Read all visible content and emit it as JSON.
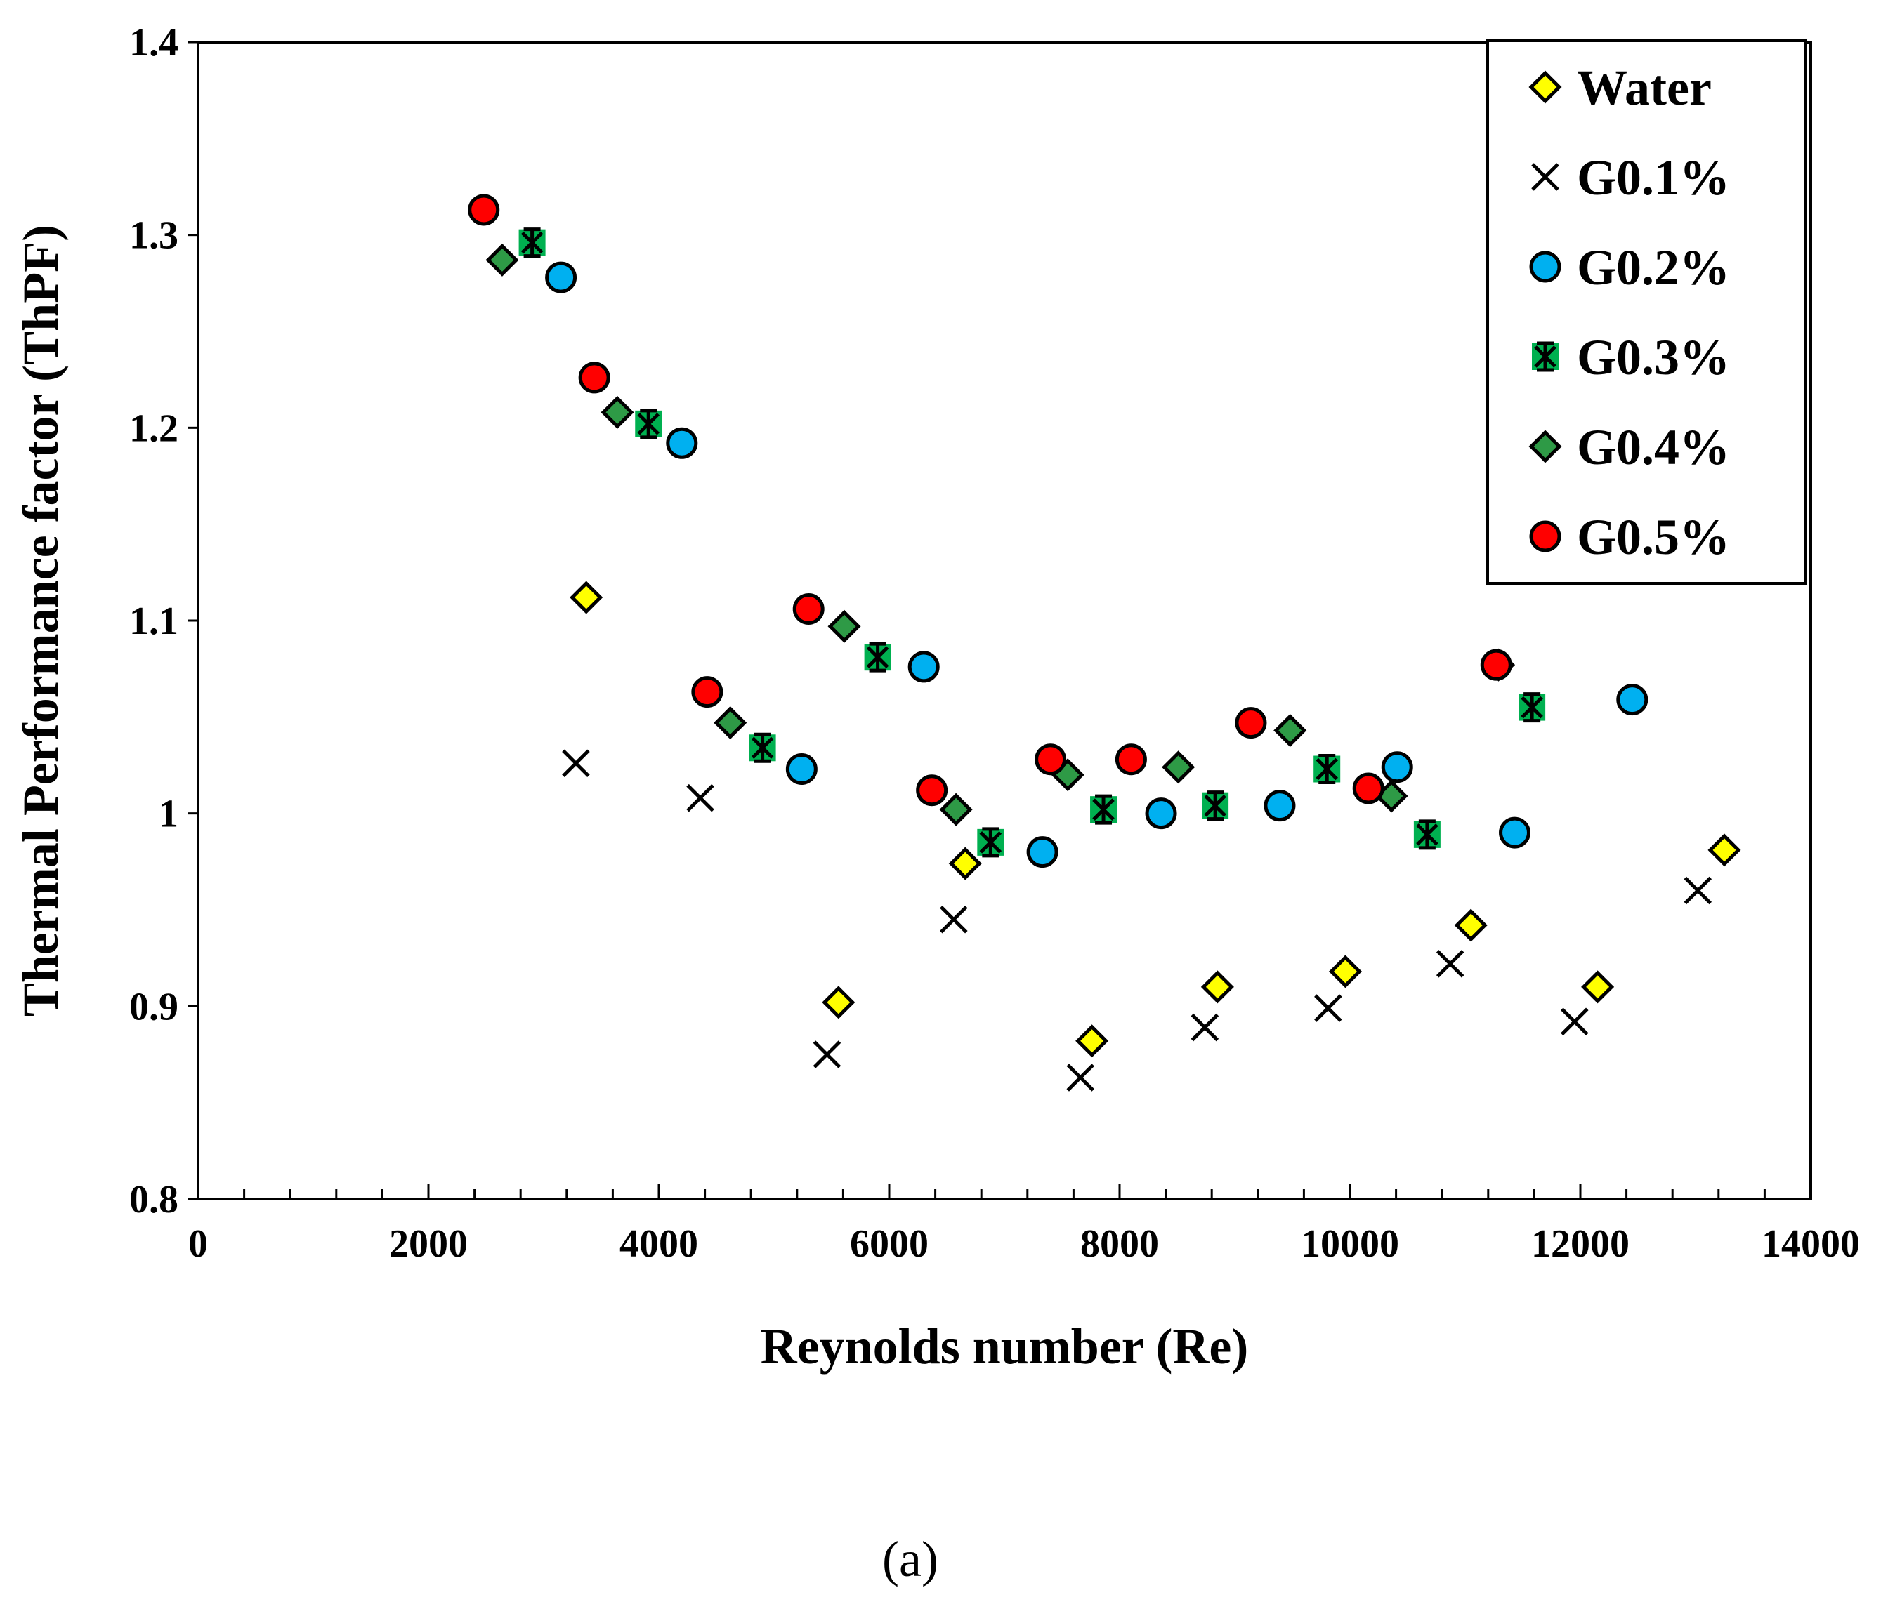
{
  "chart_data": {
    "type": "scatter",
    "title": "",
    "xlabel": "Reynolds number (Re)",
    "ylabel": "Thermal Performance factor (ThPF)",
    "xlim": [
      0,
      14000
    ],
    "ylim": [
      0.8,
      1.4
    ],
    "x_major_ticks": [
      0,
      2000,
      4000,
      6000,
      8000,
      10000,
      12000,
      14000
    ],
    "x_minor_step": 400,
    "y_major_ticks": [
      0.8,
      0.9,
      1.0,
      1.1,
      1.2,
      1.3,
      1.4
    ],
    "x_tick_labels": [
      "0",
      "2000",
      "4000",
      "6000",
      "8000",
      "10000",
      "12000",
      "14000"
    ],
    "y_tick_labels": [
      "0.8",
      "0.9",
      "1",
      "1.1",
      "1.2",
      "1.3",
      "1.4"
    ],
    "grid": false,
    "legend_position": "top-right",
    "caption": "(a)",
    "series": [
      {
        "name": "Water",
        "marker": "diamond",
        "fill": "#ffff00",
        "points": [
          [
            3370,
            1.112
          ],
          [
            5560,
            0.902
          ],
          [
            6660,
            0.974
          ],
          [
            7760,
            0.882
          ],
          [
            8850,
            0.91
          ],
          [
            9960,
            0.918
          ],
          [
            11050,
            0.942
          ],
          [
            12150,
            0.91
          ],
          [
            13250,
            0.981
          ]
        ]
      },
      {
        "name": "G0.1%",
        "marker": "x",
        "fill": "none",
        "points": [
          [
            3280,
            1.026
          ],
          [
            4360,
            1.008
          ],
          [
            5460,
            0.875
          ],
          [
            6560,
            0.945
          ],
          [
            7660,
            0.863
          ],
          [
            8740,
            0.889
          ],
          [
            9810,
            0.899
          ],
          [
            10870,
            0.922
          ],
          [
            11950,
            0.892
          ],
          [
            13020,
            0.96
          ]
        ]
      },
      {
        "name": "G0.2%",
        "marker": "circle",
        "fill": "#00b0f0",
        "points": [
          [
            3150,
            1.278
          ],
          [
            4200,
            1.192
          ],
          [
            5240,
            1.023
          ],
          [
            6300,
            1.076
          ],
          [
            7330,
            0.98
          ],
          [
            8360,
            1.0
          ],
          [
            9390,
            1.004
          ],
          [
            10410,
            1.024
          ],
          [
            11430,
            0.99
          ],
          [
            12450,
            1.059
          ]
        ]
      },
      {
        "name": "G0.3%",
        "marker": "star-square",
        "fill": "#00b050",
        "points": [
          [
            2900,
            1.296
          ],
          [
            3910,
            1.202
          ],
          [
            4900,
            1.034
          ],
          [
            5900,
            1.081
          ],
          [
            6880,
            0.985
          ],
          [
            7860,
            1.002
          ],
          [
            8830,
            1.004
          ],
          [
            9800,
            1.023
          ],
          [
            10670,
            0.989
          ],
          [
            11580,
            1.055
          ]
        ]
      },
      {
        "name": "G0.4%",
        "marker": "diamond",
        "fill": "#2e9a46",
        "points": [
          [
            2640,
            1.287
          ],
          [
            3640,
            1.208
          ],
          [
            4620,
            1.047
          ],
          [
            5610,
            1.097
          ],
          [
            6580,
            1.002
          ],
          [
            7550,
            1.02
          ],
          [
            8510,
            1.024
          ],
          [
            9480,
            1.043
          ],
          [
            10360,
            1.009
          ],
          [
            11290,
            1.077
          ]
        ]
      },
      {
        "name": "G0.5%",
        "marker": "circle",
        "fill": "#ff0000",
        "points": [
          [
            2480,
            1.313
          ],
          [
            3440,
            1.226
          ],
          [
            4420,
            1.063
          ],
          [
            5300,
            1.106
          ],
          [
            6370,
            1.012
          ],
          [
            7400,
            1.028
          ],
          [
            8100,
            1.028
          ],
          [
            9140,
            1.047
          ],
          [
            10160,
            1.013
          ],
          [
            11270,
            1.077
          ]
        ]
      }
    ]
  }
}
